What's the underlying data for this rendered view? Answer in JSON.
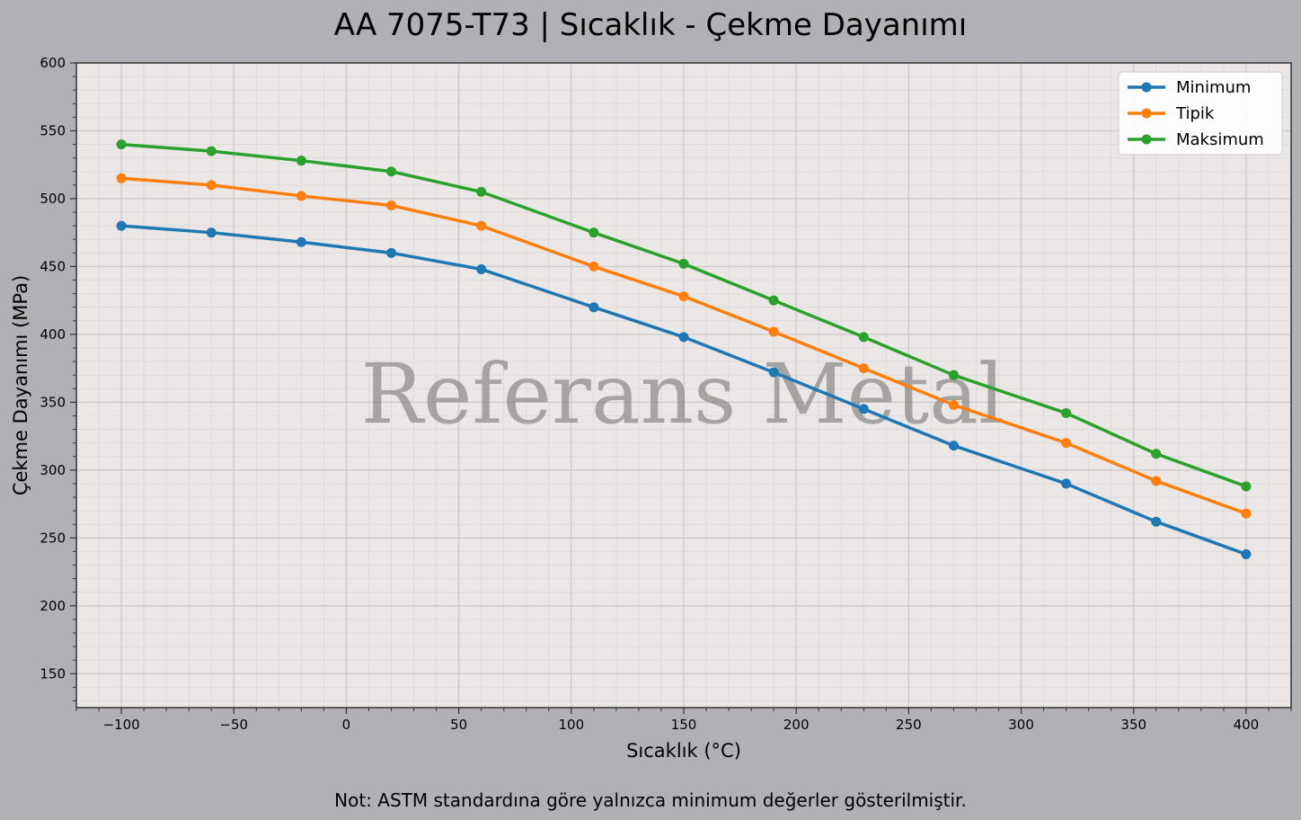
{
  "chart_data": {
    "type": "line",
    "title": "AA 7075-T73 | Sıcaklık - Çekme Dayanımı",
    "xlabel": "Sıcaklık (°C)",
    "ylabel": "Çekme Dayanımı (MPa)",
    "xlim": [
      -120,
      420
    ],
    "ylim": [
      125,
      600
    ],
    "xticks": [
      -100,
      -50,
      0,
      50,
      100,
      150,
      200,
      250,
      300,
      350,
      400
    ],
    "xtick_labels": [
      "−100",
      "−50",
      "0",
      "50",
      "100",
      "150",
      "200",
      "250",
      "300",
      "350",
      "400"
    ],
    "yticks": [
      150,
      200,
      250,
      300,
      350,
      400,
      450,
      500,
      550,
      600
    ],
    "grid": true,
    "minor_grid": true,
    "legend_placement": "top-right",
    "x": [
      -100,
      -60,
      -20,
      20,
      60,
      110,
      150,
      190,
      230,
      270,
      320,
      360,
      400
    ],
    "series": [
      {
        "name": "Minimum",
        "color": "#1f77b4",
        "values": [
          480,
          475,
          468,
          460,
          448,
          420,
          398,
          372,
          345,
          318,
          290,
          262,
          238
        ]
      },
      {
        "name": "Tipik",
        "color": "#ff7f0e",
        "values": [
          515,
          510,
          502,
          495,
          480,
          450,
          428,
          402,
          375,
          348,
          320,
          292,
          268
        ]
      },
      {
        "name": "Maksimum",
        "color": "#2ca02c",
        "values": [
          540,
          535,
          528,
          520,
          505,
          475,
          452,
          425,
          398,
          370,
          342,
          312,
          288
        ]
      }
    ],
    "watermark": "Referans Metal",
    "note": "Not: ASTM standardına göre yalnızca minimum değerler gösterilmiştir."
  },
  "colors": {
    "figure_bg": "#b1b0b5",
    "axes_bg": "#ebe7e6"
  }
}
